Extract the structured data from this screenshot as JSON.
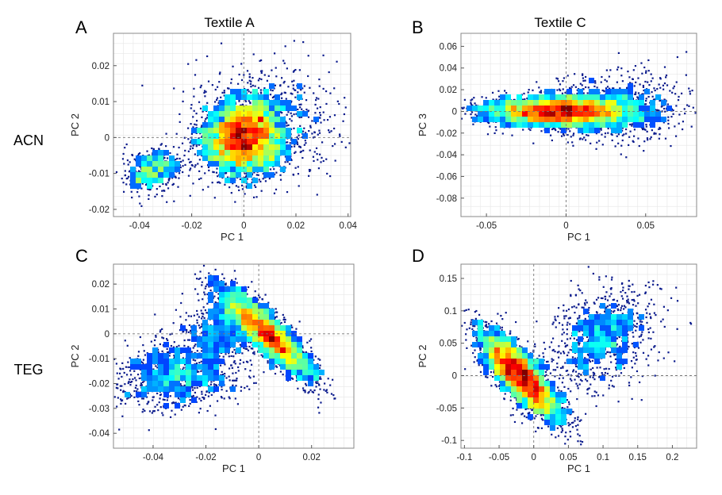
{
  "row_labels": [
    "ACN",
    "TEG"
  ],
  "column_titles": [
    "Textile A",
    "Textile C"
  ],
  "colors": {
    "scatter": "#0a1a8c",
    "frame": "#888888",
    "grid": "#e6e6e6",
    "colormap": [
      "#00007f",
      "#0000ff",
      "#0080ff",
      "#00ffff",
      "#80ff80",
      "#ffff00",
      "#ff8000",
      "#ff0000",
      "#800000"
    ]
  },
  "chart_data": [
    {
      "panel": "A",
      "type": "scatter",
      "title": "Textile A",
      "xlabel": "PC 1",
      "ylabel": "PC 2",
      "xlim": [
        -0.05,
        0.041
      ],
      "ylim": [
        -0.022,
        0.029
      ],
      "xticks": [
        -0.04,
        -0.02,
        0,
        0.02,
        0.04
      ],
      "xtick_labels": [
        "-0.04",
        "-0.02",
        "0",
        "0.02",
        "0.04"
      ],
      "yticks": [
        -0.02,
        -0.01,
        0,
        0.01,
        0.02
      ],
      "ytick_labels": [
        "-0.02",
        "-0.01",
        "0",
        "0.01",
        "0.02"
      ],
      "grid": true,
      "density_colored": true,
      "clusters": [
        {
          "cx": 0.0,
          "cy": 0.0,
          "sx": 0.0085,
          "sy": 0.0055,
          "rho": 0.05,
          "n": 2600
        },
        {
          "cx": -0.035,
          "cy": -0.009,
          "sx": 0.006,
          "sy": 0.0028,
          "rho": 0.2,
          "n": 380
        },
        {
          "cx": 0.012,
          "cy": 0.006,
          "sx": 0.015,
          "sy": 0.008,
          "rho": 0.0,
          "n": 500
        }
      ]
    },
    {
      "panel": "B",
      "type": "scatter",
      "title": "Textile C",
      "xlabel": "PC 1",
      "ylabel": "PC 3",
      "xlim": [
        -0.066,
        0.082
      ],
      "ylim": [
        -0.097,
        0.072
      ],
      "xticks": [
        -0.05,
        0,
        0.05
      ],
      "xtick_labels": [
        "-0.05",
        "0",
        "0.05"
      ],
      "yticks": [
        -0.08,
        -0.06,
        -0.04,
        -0.02,
        0,
        0.02,
        0.04,
        0.06
      ],
      "ytick_labels": [
        "-0.08",
        "-0.06",
        "-0.04",
        "-0.02",
        "0",
        "0.02",
        "0.04",
        "0.06"
      ],
      "grid": true,
      "density_colored": true,
      "clusters": [
        {
          "cx": -0.006,
          "cy": 0.0,
          "sx": 0.024,
          "sy": 0.007,
          "rho": 0.0,
          "n": 2800
        },
        {
          "cx": 0.03,
          "cy": 0.002,
          "sx": 0.022,
          "sy": 0.015,
          "rho": 0.0,
          "n": 800
        }
      ]
    },
    {
      "panel": "C",
      "type": "scatter",
      "title": "",
      "xlabel": "PC 1",
      "ylabel": "PC 2",
      "xlim": [
        -0.055,
        0.036
      ],
      "ylim": [
        -0.046,
        0.028
      ],
      "xticks": [
        -0.04,
        -0.02,
        0,
        0.02
      ],
      "xtick_labels": [
        "-0.04",
        "-0.02",
        "0",
        "0.02"
      ],
      "yticks": [
        -0.04,
        -0.03,
        -0.02,
        -0.01,
        0,
        0.01,
        0.02
      ],
      "ytick_labels": [
        "-0.04",
        "-0.03",
        "-0.02",
        "-0.01",
        "0",
        "0.01",
        "0.02"
      ],
      "grid": true,
      "density_colored": true,
      "clusters": [
        {
          "cx": 0.003,
          "cy": 0.0,
          "sx": 0.009,
          "sy": 0.009,
          "rho": -0.85,
          "n": 2700
        },
        {
          "cx": -0.03,
          "cy": -0.016,
          "sx": 0.012,
          "sy": 0.007,
          "rho": 0.1,
          "n": 1000
        },
        {
          "cx": -0.016,
          "cy": 0.002,
          "sx": 0.007,
          "sy": 0.006,
          "rho": 0.0,
          "n": 350
        }
      ]
    },
    {
      "panel": "D",
      "type": "scatter",
      "title": "",
      "xlabel": "PC 1",
      "ylabel": "PC 2",
      "xlim": [
        -0.105,
        0.235
      ],
      "ylim": [
        -0.112,
        0.172
      ],
      "xticks": [
        -0.1,
        -0.05,
        0,
        0.05,
        0.1,
        0.15,
        0.2
      ],
      "xtick_labels": [
        "-0.1",
        "-0.05",
        "0",
        "0.05",
        "0.1",
        "0.15",
        "0.2"
      ],
      "yticks": [
        -0.1,
        -0.05,
        0,
        0.05,
        0.1,
        0.15
      ],
      "ytick_labels": [
        "-0.1",
        "-0.05",
        "0",
        "0.05",
        "0.1",
        "0.15"
      ],
      "grid": true,
      "density_colored": true,
      "clusters": [
        {
          "cx": -0.02,
          "cy": 0.0,
          "sx": 0.03,
          "sy": 0.035,
          "rho": -0.8,
          "n": 2800
        },
        {
          "cx": 0.1,
          "cy": 0.06,
          "sx": 0.04,
          "sy": 0.04,
          "rho": 0.3,
          "n": 900
        }
      ]
    }
  ]
}
